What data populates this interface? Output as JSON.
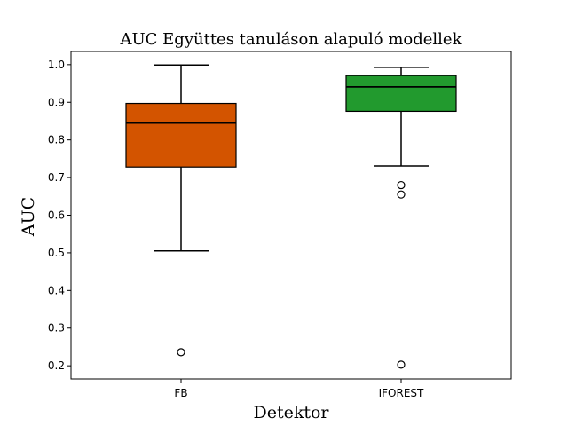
{
  "chart_data": {
    "type": "box",
    "title": "AUC Együttes tanuláson alapuló modellek",
    "xlabel": "Detektor",
    "ylabel": "AUC",
    "ylim": [
      0.165,
      1.035
    ],
    "yticks": [
      0.2,
      0.3,
      0.4,
      0.5,
      0.6,
      0.7,
      0.8,
      0.9,
      1.0
    ],
    "ytick_labels": [
      "0.2",
      "0.3",
      "0.4",
      "0.5",
      "0.6",
      "0.7",
      "0.8",
      "0.9",
      "1.0"
    ],
    "categories": [
      "FB",
      "IFOREST"
    ],
    "grid": false,
    "boxes": [
      {
        "category": "FB",
        "color": "#d35400",
        "whisker_low": 0.505,
        "q1": 0.728,
        "median": 0.845,
        "q3": 0.897,
        "whisker_high": 0.999,
        "outliers": [
          0.236
        ]
      },
      {
        "category": "IFOREST",
        "color": "#229a2e",
        "whisker_low": 0.731,
        "q1": 0.876,
        "median": 0.941,
        "q3": 0.971,
        "whisker_high": 0.993,
        "outliers": [
          0.68,
          0.655,
          0.203
        ]
      }
    ]
  }
}
